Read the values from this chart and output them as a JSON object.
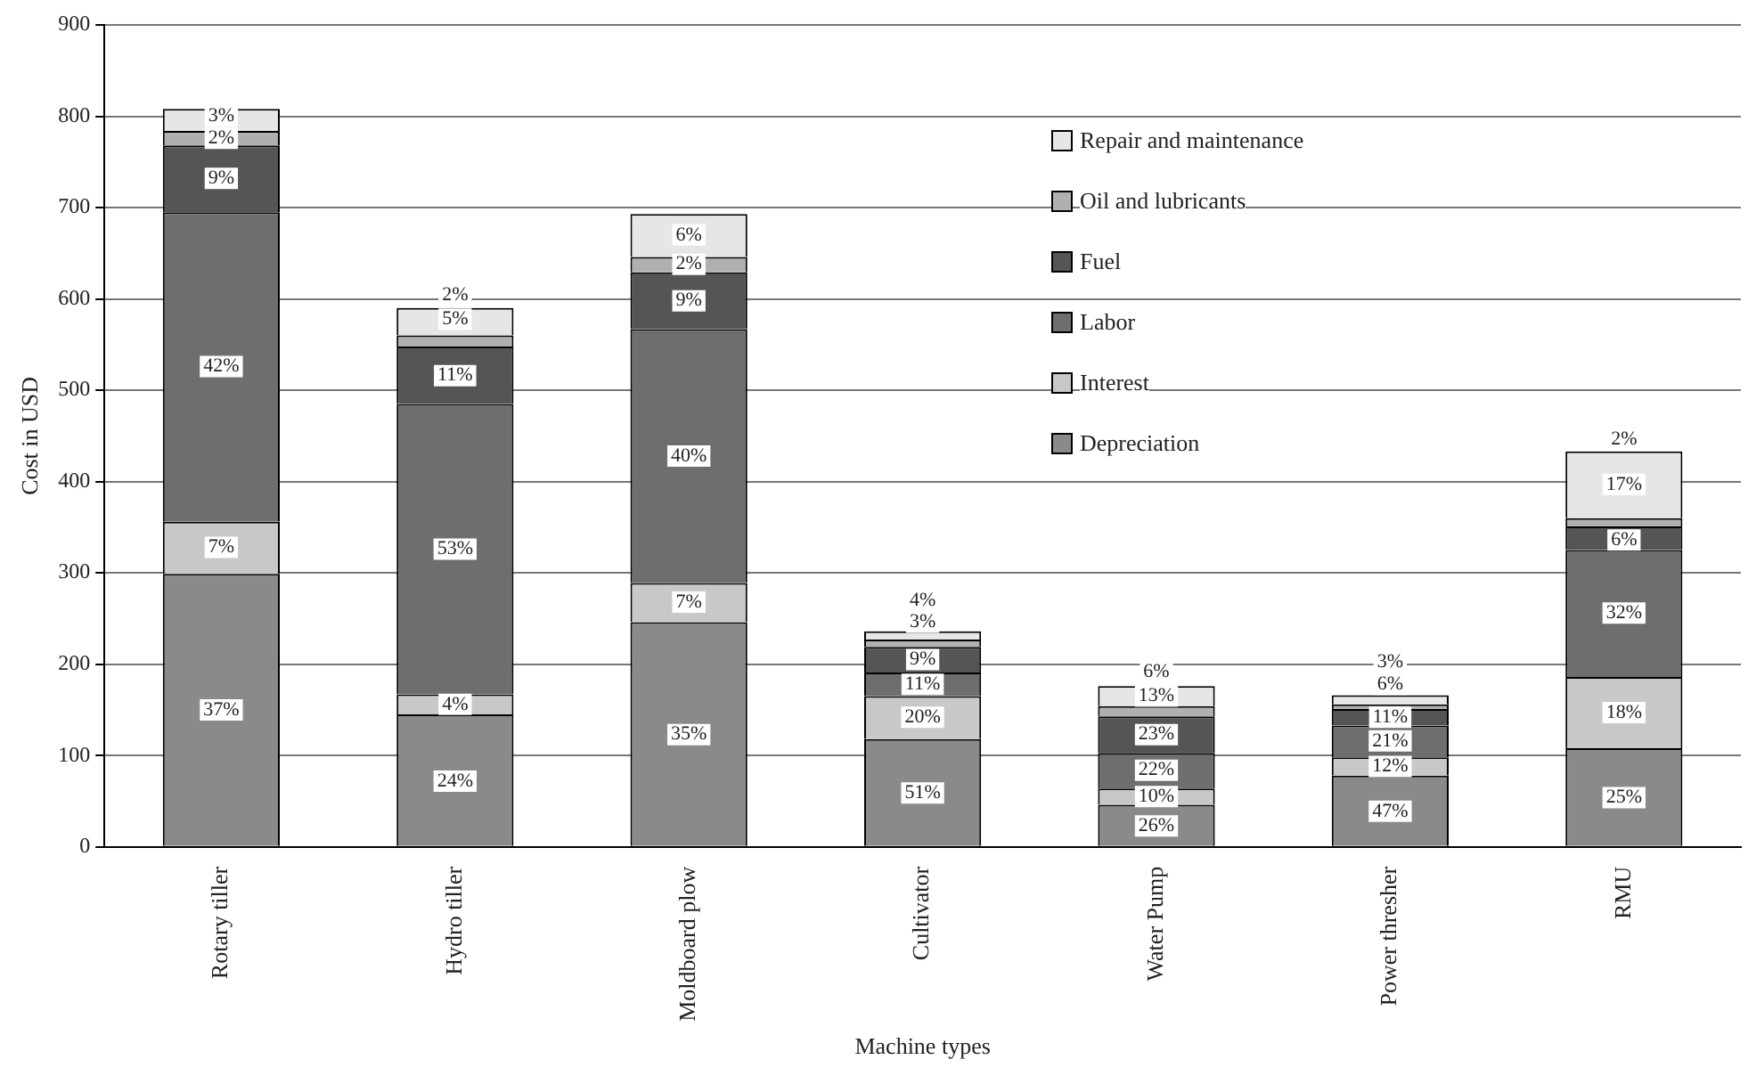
{
  "chart_data": {
    "type": "bar",
    "stacked": true,
    "xlabel": "Machine types",
    "ylabel": "Cost in USD",
    "categories": [
      "Rotary tiller",
      "Hydro tiller",
      "Moldboard plow",
      "Cultivator",
      "Water Pump",
      "Power thresher",
      "RMU"
    ],
    "ylim": [
      0,
      900
    ],
    "yticks": [
      0,
      100,
      200,
      300,
      400,
      500,
      600,
      700,
      800,
      900
    ],
    "grid": "y",
    "legend": "top right",
    "series": [
      {
        "name": "Depreciation",
        "color": "#8a8a8a",
        "values": [
          299,
          145,
          246,
          118,
          46,
          78,
          108
        ]
      },
      {
        "name": "Interest",
        "color": "#c8c8c8",
        "values": [
          57,
          22,
          43,
          47,
          18,
          20,
          78
        ]
      },
      {
        "name": "Labor",
        "color": "#6e6e6e",
        "values": [
          339,
          318,
          278,
          26,
          39,
          35,
          139
        ]
      },
      {
        "name": "Fuel",
        "color": "#555555",
        "values": [
          73,
          63,
          62,
          28,
          40,
          18,
          26
        ]
      },
      {
        "name": "Oil and lubricants",
        "color": "#b0b0b0",
        "values": [
          16,
          12,
          17,
          8,
          11,
          5,
          9
        ]
      },
      {
        "name": "Repair and maintenance",
        "color": "#e6e6e6",
        "values": [
          24,
          30,
          47,
          9,
          22,
          10,
          73
        ]
      }
    ],
    "annotations": [
      {
        "text": "37%",
        "x": "Rotary tiller",
        "y": 150
      },
      {
        "text": "7%",
        "x": "Rotary tiller",
        "y": 328
      },
      {
        "text": "42%",
        "x": "Rotary tiller",
        "y": 526
      },
      {
        "text": "9%",
        "x": "Rotary tiller",
        "y": 732
      },
      {
        "text": "2%",
        "x": "Rotary tiller",
        "y": 776
      },
      {
        "text": "3%",
        "x": "Rotary tiller",
        "y": 800
      },
      {
        "text": "24%",
        "x": "Hydro tiller",
        "y": 72
      },
      {
        "text": "4%",
        "x": "Hydro tiller",
        "y": 156
      },
      {
        "text": "53%",
        "x": "Hydro tiller",
        "y": 326
      },
      {
        "text": "11%",
        "x": "Hydro tiller",
        "y": 516
      },
      {
        "text": "2%",
        "x": "Hydro tiller",
        "y": 604
      },
      {
        "text": "5%",
        "x": "Hydro tiller",
        "y": 578
      },
      {
        "text": "35%",
        "x": "Moldboard plow",
        "y": 123
      },
      {
        "text": "7%",
        "x": "Moldboard plow",
        "y": 268
      },
      {
        "text": "40%",
        "x": "Moldboard plow",
        "y": 428
      },
      {
        "text": "9%",
        "x": "Moldboard plow",
        "y": 598
      },
      {
        "text": "2%",
        "x": "Moldboard plow",
        "y": 638
      },
      {
        "text": "6%",
        "x": "Moldboard plow",
        "y": 670
      },
      {
        "text": "51%",
        "x": "Cultivator",
        "y": 59
      },
      {
        "text": "20%",
        "x": "Cultivator",
        "y": 142
      },
      {
        "text": "11%",
        "x": "Cultivator",
        "y": 178
      },
      {
        "text": "9%",
        "x": "Cultivator",
        "y": 205
      },
      {
        "text": "3%",
        "x": "Cultivator",
        "y": 246
      },
      {
        "text": "4%",
        "x": "Cultivator",
        "y": 270
      },
      {
        "text": "26%",
        "x": "Water Pump",
        "y": 23
      },
      {
        "text": "10%",
        "x": "Water Pump",
        "y": 55
      },
      {
        "text": "22%",
        "x": "Water Pump",
        "y": 84
      },
      {
        "text": "23%",
        "x": "Water Pump",
        "y": 123
      },
      {
        "text": "6%",
        "x": "Water Pump",
        "y": 192
      },
      {
        "text": "13%",
        "x": "Water Pump",
        "y": 165
      },
      {
        "text": "47%",
        "x": "Power thresher",
        "y": 39
      },
      {
        "text": "12%",
        "x": "Power thresher",
        "y": 88
      },
      {
        "text": "21%",
        "x": "Power thresher",
        "y": 116
      },
      {
        "text": "11%",
        "x": "Power thresher",
        "y": 142
      },
      {
        "text": "6%",
        "x": "Power thresher",
        "y": 178
      },
      {
        "text": "3%",
        "x": "Power thresher",
        "y": 202
      },
      {
        "text": "25%",
        "x": "RMU",
        "y": 54
      },
      {
        "text": "18%",
        "x": "RMU",
        "y": 147
      },
      {
        "text": "32%",
        "x": "RMU",
        "y": 256
      },
      {
        "text": "6%",
        "x": "RMU",
        "y": 336
      },
      {
        "text": "2%",
        "x": "RMU",
        "y": 446
      },
      {
        "text": "17%",
        "x": "RMU",
        "y": 397
      }
    ]
  }
}
